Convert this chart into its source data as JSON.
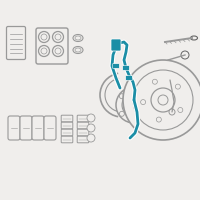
{
  "bg_color": "#f0eeec",
  "highlight_color": "#1b8ea6",
  "line_color": "#999999",
  "dark_line": "#666666",
  "light_line": "#bbbbbb",
  "fig_size": [
    2.0,
    2.0
  ],
  "dpi": 100
}
